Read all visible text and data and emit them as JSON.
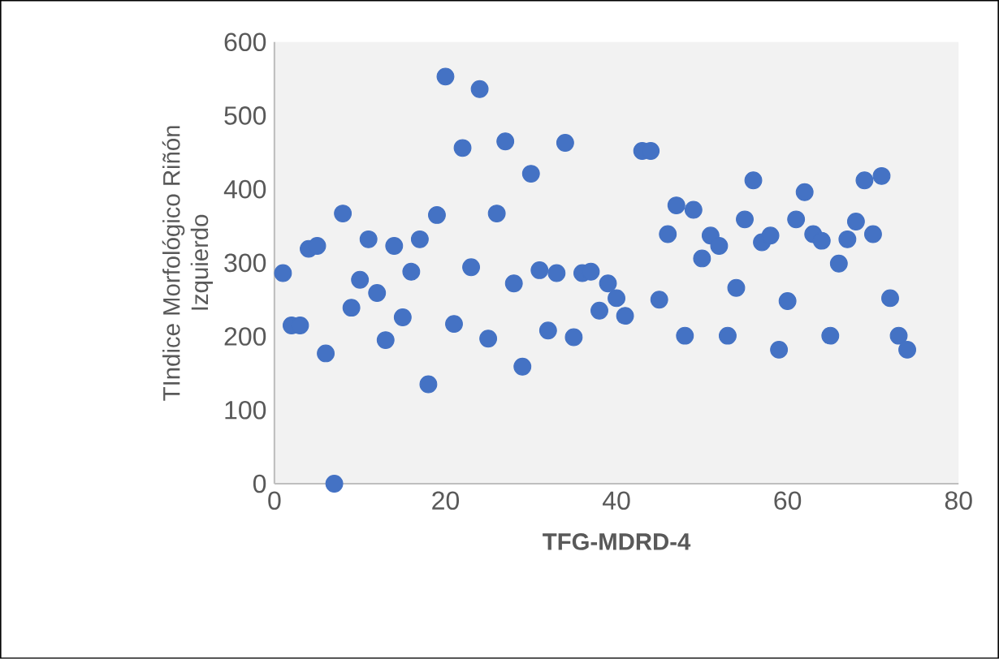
{
  "chart_data": {
    "type": "scatter",
    "xlabel": "TFG-MDRD-4",
    "ylabel": "TIndice Morfológico Riñón Izquierdo",
    "color": "#4472c4",
    "marker": "circle",
    "x": [
      1,
      2,
      3,
      4,
      5,
      6,
      7,
      8,
      9,
      10,
      11,
      12,
      13,
      14,
      15,
      16,
      17,
      18,
      19,
      20,
      21,
      22,
      23,
      24,
      25,
      26,
      27,
      28,
      29,
      30,
      31,
      32,
      33,
      34,
      35,
      36,
      37,
      38,
      39,
      40,
      41,
      43,
      44,
      45,
      46,
      47,
      48,
      49,
      50,
      51,
      52,
      53,
      54,
      55,
      56,
      57,
      58,
      59,
      60,
      61,
      62,
      63,
      64,
      65,
      66,
      67,
      68,
      69,
      70,
      71,
      72,
      73,
      74
    ],
    "values": [
      286,
      215,
      215,
      319,
      323,
      177,
      0,
      367,
      239,
      277,
      332,
      259,
      195,
      323,
      226,
      288,
      332,
      135,
      365,
      553,
      217,
      456,
      294,
      536,
      197,
      367,
      465,
      272,
      159,
      421,
      290,
      208,
      286,
      463,
      199,
      286,
      288,
      235,
      272,
      252,
      228,
      452,
      452,
      250,
      339,
      378,
      201,
      372,
      306,
      337,
      323,
      201,
      266,
      359,
      412,
      328,
      337,
      182,
      248,
      359,
      396,
      339,
      330,
      201,
      299,
      332,
      356,
      412,
      339,
      418,
      252,
      201,
      182
    ],
    "xlim": [
      0,
      80
    ],
    "ylim": [
      0,
      600
    ],
    "xticks": [
      0,
      20,
      40,
      60,
      80
    ],
    "yticks": [
      0,
      100,
      200,
      300,
      400,
      500,
      600
    ]
  }
}
